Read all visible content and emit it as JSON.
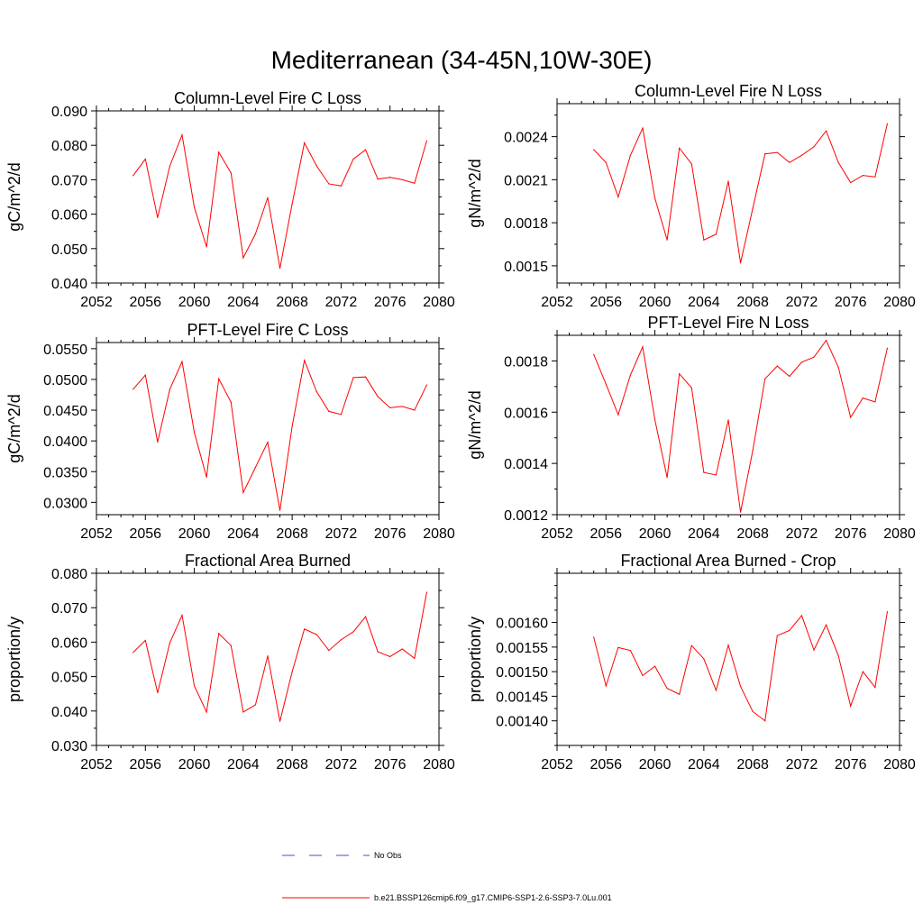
{
  "figure": {
    "title": "Mediterranean (34-45N,10W-30E)"
  },
  "legend": {
    "items": [
      {
        "label": "No Obs",
        "color": "#4a4fb8",
        "style": "dashed"
      },
      {
        "label": "b.e21.BSSP126cmip6.f09_g17.CMIP6-SSP1-2.6-SSP3-7.0Lu.001",
        "color": "#ff0000",
        "style": "solid"
      }
    ]
  },
  "chart_data": [
    {
      "type": "line",
      "title": "Column-Level Fire C Loss",
      "ylabel": "gC/m^2/d",
      "xlim": [
        2052,
        2080
      ],
      "xticks": [
        2052,
        2056,
        2060,
        2064,
        2068,
        2072,
        2076,
        2080
      ],
      "ylim": [
        0.04,
        0.09
      ],
      "yticks": [
        0.04,
        0.05,
        0.06,
        0.07,
        0.08,
        0.09
      ],
      "ytick_labels": [
        "0.040",
        "0.050",
        "0.060",
        "0.070",
        "0.080",
        "0.090"
      ],
      "series": [
        {
          "color": "#ff0000",
          "x": [
            2055,
            2056,
            2057,
            2058,
            2059,
            2060,
            2061,
            2062,
            2063,
            2064,
            2065,
            2066,
            2067,
            2068,
            2069,
            2070,
            2071,
            2072,
            2073,
            2074,
            2075,
            2076,
            2077,
            2078,
            2079
          ],
          "y": [
            0.0712,
            0.076,
            0.059,
            0.074,
            0.083,
            0.062,
            0.0505,
            0.078,
            0.072,
            0.0473,
            0.0543,
            0.0648,
            0.0443,
            0.063,
            0.0807,
            0.074,
            0.0688,
            0.0682,
            0.076,
            0.0787,
            0.0702,
            0.0707,
            0.07,
            0.069,
            0.0813
          ]
        }
      ]
    },
    {
      "type": "line",
      "title": "Column-Level Fire N Loss",
      "ylabel": "gN/m^2/d",
      "xlim": [
        2052,
        2080
      ],
      "xticks": [
        2052,
        2056,
        2060,
        2064,
        2068,
        2072,
        2076,
        2080
      ],
      "ylim": [
        0.00138,
        0.00263
      ],
      "yticks": [
        0.0015,
        0.0018,
        0.0021,
        0.0024
      ],
      "ytick_labels": [
        "0.0015",
        "0.0018",
        "0.0021",
        "0.0024"
      ],
      "series": [
        {
          "color": "#ff0000",
          "x": [
            2055,
            2056,
            2057,
            2058,
            2059,
            2060,
            2061,
            2062,
            2063,
            2064,
            2065,
            2066,
            2067,
            2068,
            2069,
            2070,
            2071,
            2072,
            2073,
            2074,
            2075,
            2076,
            2077,
            2078,
            2079
          ],
          "y": [
            0.00231,
            0.00222,
            0.00198,
            0.00227,
            0.00246,
            0.00197,
            0.00168,
            0.00232,
            0.00221,
            0.00168,
            0.00172,
            0.00209,
            0.00152,
            0.0019,
            0.00228,
            0.00229,
            0.00222,
            0.00227,
            0.00233,
            0.00244,
            0.00222,
            0.00208,
            0.00213,
            0.00212,
            0.00249
          ]
        }
      ]
    },
    {
      "type": "line",
      "title": "PFT-Level Fire C Loss",
      "ylabel": "gC/m^2/d",
      "xlim": [
        2052,
        2080
      ],
      "xticks": [
        2052,
        2056,
        2060,
        2064,
        2068,
        2072,
        2076,
        2080
      ],
      "ylim": [
        0.028,
        0.056
      ],
      "yticks": [
        0.03,
        0.035,
        0.04,
        0.045,
        0.05,
        0.055
      ],
      "ytick_labels": [
        "0.0300",
        "0.0350",
        "0.0400",
        "0.0450",
        "0.0500",
        "0.0550"
      ],
      "series": [
        {
          "color": "#ff0000",
          "x": [
            2055,
            2056,
            2057,
            2058,
            2059,
            2060,
            2061,
            2062,
            2063,
            2064,
            2065,
            2066,
            2067,
            2068,
            2069,
            2070,
            2071,
            2072,
            2073,
            2074,
            2075,
            2076,
            2077,
            2078,
            2079
          ],
          "y": [
            0.0484,
            0.0507,
            0.0398,
            0.0484,
            0.0529,
            0.0414,
            0.0341,
            0.0501,
            0.0463,
            0.0316,
            0.0357,
            0.0398,
            0.0287,
            0.0424,
            0.0531,
            0.048,
            0.0448,
            0.0443,
            0.0503,
            0.0504,
            0.0472,
            0.0454,
            0.0456,
            0.045,
            0.0491
          ]
        }
      ]
    },
    {
      "type": "line",
      "title": "PFT-Level Fire N Loss",
      "ylabel": "gN/m^2/d",
      "xlim": [
        2052,
        2080
      ],
      "xticks": [
        2052,
        2056,
        2060,
        2064,
        2068,
        2072,
        2076,
        2080
      ],
      "ylim": [
        0.0012,
        0.0019
      ],
      "yticks": [
        0.0012,
        0.0014,
        0.0016,
        0.0018
      ],
      "ytick_labels": [
        "0.0012",
        "0.0014",
        "0.0016",
        "0.0018"
      ],
      "series": [
        {
          "color": "#ff0000",
          "x": [
            2055,
            2056,
            2057,
            2058,
            2059,
            2060,
            2061,
            2062,
            2063,
            2064,
            2065,
            2066,
            2067,
            2068,
            2069,
            2070,
            2071,
            2072,
            2073,
            2074,
            2075,
            2076,
            2077,
            2078,
            2079
          ],
          "y": [
            0.001825,
            0.00171,
            0.00159,
            0.001745,
            0.001855,
            0.00157,
            0.001345,
            0.00175,
            0.001695,
            0.001365,
            0.001355,
            0.00157,
            0.00121,
            0.00145,
            0.00173,
            0.00178,
            0.00174,
            0.001795,
            0.001815,
            0.00188,
            0.001775,
            0.00158,
            0.001655,
            0.00164,
            0.00185
          ]
        }
      ]
    },
    {
      "type": "line",
      "title": "Fractional Area Burned",
      "ylabel": "proportion/y",
      "xlim": [
        2052,
        2080
      ],
      "xticks": [
        2052,
        2056,
        2060,
        2064,
        2068,
        2072,
        2076,
        2080
      ],
      "ylim": [
        0.03,
        0.08
      ],
      "yticks": [
        0.03,
        0.04,
        0.05,
        0.06,
        0.07,
        0.08
      ],
      "ytick_labels": [
        "0.030",
        "0.040",
        "0.050",
        "0.060",
        "0.070",
        "0.080"
      ],
      "series": [
        {
          "color": "#ff0000",
          "x": [
            2055,
            2056,
            2057,
            2058,
            2059,
            2060,
            2061,
            2062,
            2063,
            2064,
            2065,
            2066,
            2067,
            2068,
            2069,
            2070,
            2071,
            2072,
            2073,
            2074,
            2075,
            2076,
            2077,
            2078,
            2079
          ],
          "y": [
            0.057,
            0.0605,
            0.0453,
            0.0598,
            0.0678,
            0.0473,
            0.0397,
            0.0625,
            0.059,
            0.0397,
            0.0418,
            0.056,
            0.037,
            0.0514,
            0.0638,
            0.0622,
            0.0576,
            0.0607,
            0.063,
            0.0674,
            0.0572,
            0.0558,
            0.058,
            0.0553,
            0.0745
          ]
        }
      ]
    },
    {
      "type": "line",
      "title": "Fractional Area Burned - Crop",
      "ylabel": "proportion/y",
      "xlim": [
        2052,
        2080
      ],
      "xticks": [
        2052,
        2056,
        2060,
        2064,
        2068,
        2072,
        2076,
        2080
      ],
      "ylim": [
        0.00135,
        0.0017
      ],
      "yticks": [
        0.0014,
        0.00145,
        0.0015,
        0.00155,
        0.0016
      ],
      "ytick_labels": [
        "0.00140",
        "0.00145",
        "0.00150",
        "0.00155",
        "0.00160"
      ],
      "series": [
        {
          "color": "#ff0000",
          "x": [
            2055,
            2056,
            2057,
            2058,
            2059,
            2060,
            2061,
            2062,
            2063,
            2064,
            2065,
            2066,
            2067,
            2068,
            2069,
            2070,
            2071,
            2072,
            2073,
            2074,
            2075,
            2076,
            2077,
            2078,
            2079
          ],
          "y": [
            0.00157,
            0.001471,
            0.001549,
            0.001543,
            0.001492,
            0.001511,
            0.001466,
            0.001454,
            0.001553,
            0.001526,
            0.001462,
            0.001554,
            0.00147,
            0.001419,
            0.0014,
            0.001573,
            0.001584,
            0.001614,
            0.001544,
            0.001595,
            0.001532,
            0.00143,
            0.0015,
            0.001468,
            0.001622
          ]
        }
      ]
    }
  ]
}
